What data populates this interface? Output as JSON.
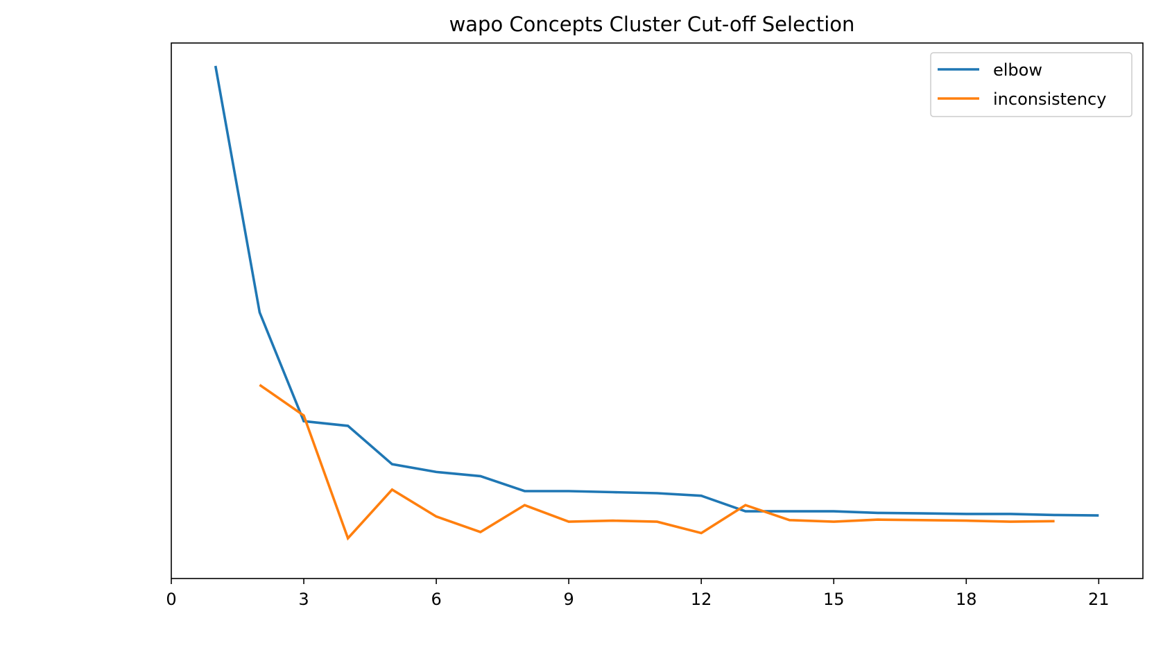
{
  "chart_data": {
    "type": "line",
    "title": "wapo Concepts Cluster Cut-off Selection",
    "xlabel": "",
    "ylabel": "",
    "xlim": [
      0,
      22
    ],
    "ylim": [
      0,
      1
    ],
    "y_ticks_shown": false,
    "x_ticks": [
      0,
      3,
      6,
      9,
      12,
      15,
      18,
      21
    ],
    "grid": false,
    "legend_position": "top-right",
    "series": [
      {
        "name": "elbow",
        "color": "#1f77b4",
        "x": [
          1,
          2,
          3,
          4,
          5,
          6,
          7,
          8,
          9,
          10,
          11,
          12,
          13,
          14,
          15,
          16,
          17,
          18,
          19,
          20,
          21
        ],
        "y": [
          0.9,
          0.424,
          0.214,
          0.205,
          0.131,
          0.116,
          0.108,
          0.079,
          0.079,
          0.077,
          0.075,
          0.07,
          0.04,
          0.04,
          0.04,
          0.037,
          0.036,
          0.035,
          0.035,
          0.033,
          0.032
        ]
      },
      {
        "name": "inconsistency",
        "color": "#ff7f0e",
        "x": [
          2,
          3,
          4,
          5,
          6,
          7,
          8,
          9,
          10,
          11,
          12,
          13,
          14,
          15,
          16,
          17,
          18,
          19,
          20
        ],
        "y": [
          0.284,
          0.225,
          -0.012,
          0.082,
          0.03,
          0.0,
          0.052,
          0.02,
          0.022,
          0.02,
          -0.002,
          0.052,
          0.023,
          0.02,
          0.024,
          0.023,
          0.022,
          0.02,
          0.021
        ]
      }
    ]
  }
}
